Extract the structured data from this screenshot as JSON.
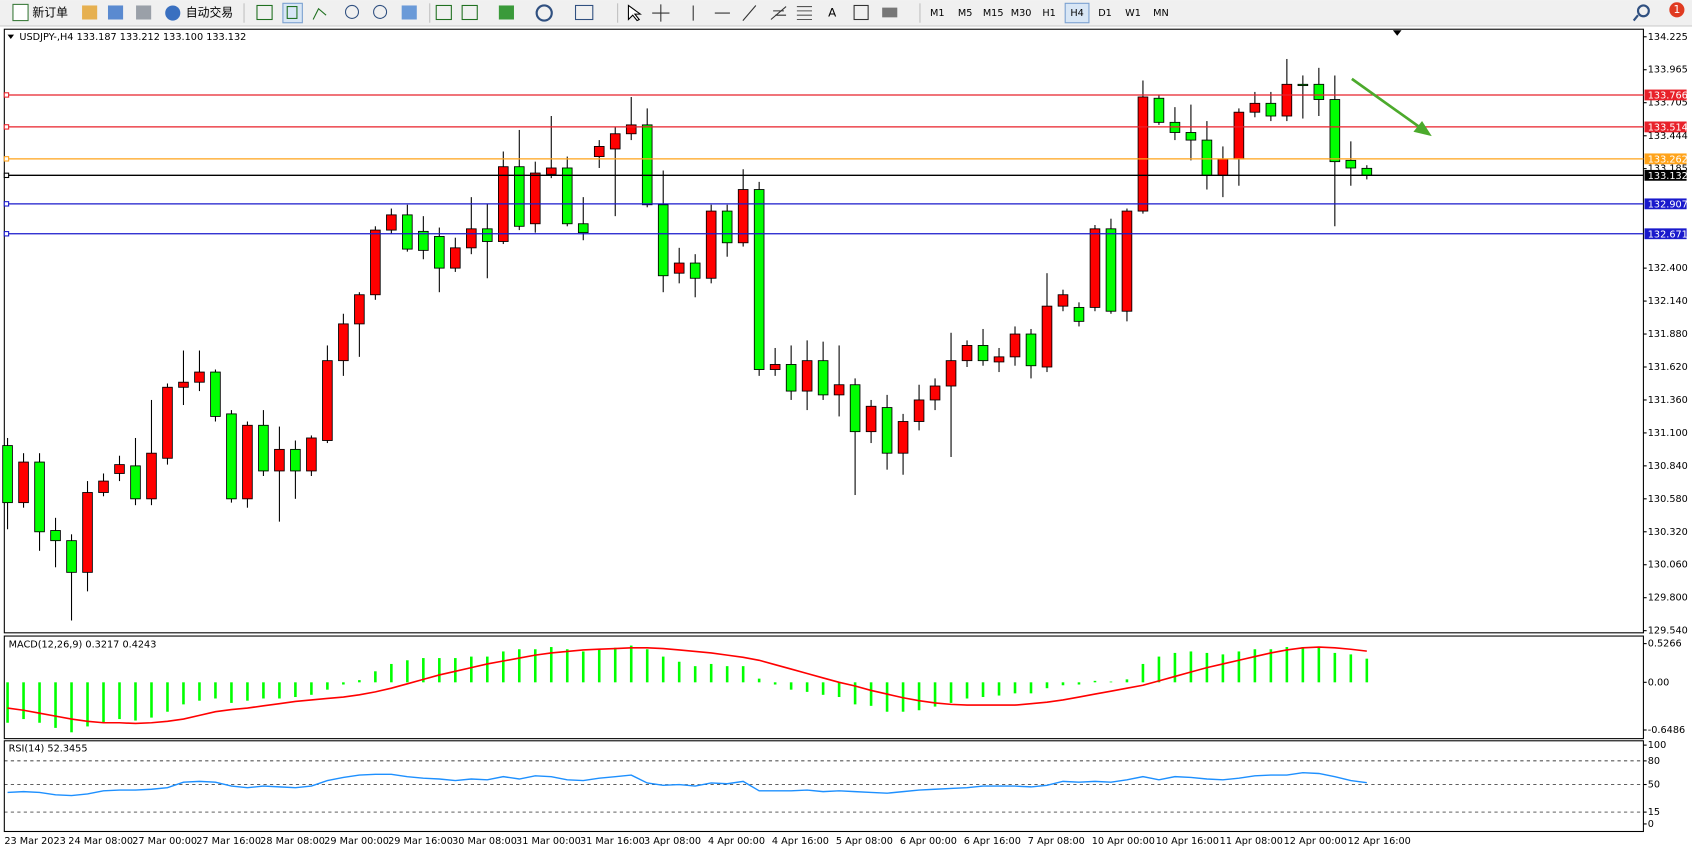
{
  "toolbar": {
    "new_order": "新订单",
    "auto_trading": "自动交易",
    "timeframes": [
      "M1",
      "M5",
      "M15",
      "M30",
      "H1",
      "H4",
      "D1",
      "W1",
      "MN"
    ],
    "active_timeframe": "H4",
    "notification_count": 1
  },
  "chart_data": [
    {
      "type": "candlestick",
      "title": "USDJPY-,H4  133.187 133.212 133.100 133.132",
      "categories": [
        "23 Mar 2023",
        null,
        null,
        null,
        "24 Mar 08:00",
        null,
        null,
        null,
        "27 Mar 00:00",
        null,
        null,
        null,
        "27 Mar 16:00",
        null,
        null,
        null,
        "28 Mar 08:00",
        null,
        null,
        null,
        "29 Mar 00:00",
        null,
        null,
        null,
        "29 Mar 16:00",
        null,
        null,
        null,
        "30 Mar 08:00",
        null,
        null,
        null,
        "31 Mar 00:00",
        null,
        null,
        null,
        "31 Mar 16:00",
        null,
        null,
        null,
        "3 Apr 08:00",
        null,
        null,
        null,
        "4 Apr 00:00",
        null,
        null,
        null,
        "4 Apr 16:00",
        null,
        null,
        null,
        "5 Apr 08:00",
        null,
        null,
        null,
        "6 Apr 00:00",
        null,
        null,
        null,
        "6 Apr 16:00",
        null,
        null,
        null,
        "7 Apr 08:00",
        null,
        null,
        null,
        "10 Apr 00:00",
        null,
        null,
        null,
        "10 Apr 16:00",
        null,
        null,
        null,
        "11 Apr 08:00",
        null,
        null,
        null,
        "12 Apr 00:00",
        null,
        null,
        null,
        "12 Apr 16:00",
        null
      ],
      "open": [
        131.0,
        130.55,
        130.87,
        130.33,
        130.25,
        130.0,
        130.63,
        130.78,
        130.84,
        130.58,
        130.9,
        131.46,
        131.5,
        131.58,
        131.25,
        130.58,
        131.16,
        130.8,
        130.97,
        130.8,
        131.04,
        131.67,
        131.96,
        132.19,
        132.7,
        132.82,
        132.69,
        132.65,
        132.4,
        132.56,
        132.71,
        132.61,
        133.2,
        132.75,
        133.14,
        133.19,
        132.75,
        133.28,
        133.34,
        133.46,
        133.53,
        132.9,
        132.36,
        132.44,
        132.32,
        132.85,
        132.6,
        133.02,
        131.6,
        131.64,
        131.43,
        131.67,
        131.4,
        131.48,
        131.11,
        131.3,
        130.94,
        131.19,
        131.36,
        131.47,
        131.67,
        131.79,
        131.66,
        131.7,
        131.88,
        131.62,
        132.1,
        132.09,
        132.09,
        132.71,
        132.06,
        132.85,
        133.74,
        133.55,
        133.47,
        133.41,
        133.13,
        133.26,
        133.63,
        133.7,
        133.6,
        133.85,
        133.85,
        133.73,
        133.25,
        133.187
      ],
      "high": [
        131.06,
        130.94,
        130.94,
        130.43,
        130.3,
        130.72,
        130.78,
        130.92,
        131.06,
        131.36,
        131.49,
        131.75,
        131.75,
        131.6,
        131.28,
        131.19,
        131.28,
        131.15,
        131.04,
        131.08,
        131.79,
        132.04,
        132.21,
        132.73,
        132.87,
        132.9,
        132.81,
        132.72,
        132.64,
        132.96,
        132.91,
        133.32,
        133.49,
        133.24,
        133.6,
        133.28,
        132.96,
        133.41,
        133.51,
        133.75,
        133.66,
        133.17,
        132.56,
        132.51,
        132.9,
        132.9,
        133.18,
        133.08,
        131.77,
        131.79,
        131.83,
        131.82,
        131.79,
        131.53,
        131.36,
        131.4,
        131.25,
        131.48,
        131.53,
        131.89,
        131.83,
        131.92,
        131.77,
        131.94,
        131.92,
        132.36,
        132.23,
        132.13,
        132.74,
        132.79,
        132.87,
        133.88,
        133.77,
        133.67,
        133.69,
        133.56,
        133.36,
        133.66,
        133.79,
        133.79,
        134.05,
        133.92,
        133.98,
        133.92,
        133.4,
        133.212
      ],
      "low": [
        130.34,
        130.51,
        130.17,
        130.04,
        129.62,
        129.85,
        130.6,
        130.72,
        130.53,
        130.53,
        130.85,
        131.32,
        131.43,
        131.19,
        130.55,
        130.51,
        130.76,
        130.4,
        130.58,
        130.76,
        131.02,
        131.55,
        131.7,
        132.15,
        132.67,
        132.53,
        132.47,
        132.21,
        132.37,
        132.51,
        132.32,
        132.59,
        132.7,
        132.68,
        133.11,
        132.73,
        132.62,
        133.19,
        132.81,
        133.41,
        132.88,
        132.21,
        132.28,
        132.17,
        132.28,
        132.49,
        132.57,
        131.55,
        131.55,
        131.36,
        131.28,
        131.36,
        131.23,
        130.61,
        131.02,
        130.81,
        130.77,
        131.12,
        131.28,
        130.91,
        131.62,
        131.63,
        131.58,
        131.63,
        131.53,
        131.58,
        132.06,
        131.94,
        132.06,
        132.04,
        131.98,
        132.83,
        133.53,
        133.41,
        133.25,
        133.02,
        132.96,
        133.05,
        133.59,
        133.56,
        133.56,
        133.58,
        133.6,
        132.73,
        133.05,
        133.1
      ],
      "close": [
        130.55,
        130.87,
        130.32,
        130.25,
        130.0,
        130.63,
        130.72,
        130.85,
        130.58,
        130.94,
        131.46,
        131.5,
        131.58,
        131.23,
        130.58,
        131.16,
        130.8,
        130.97,
        130.8,
        131.06,
        131.67,
        131.96,
        132.19,
        132.7,
        132.82,
        132.55,
        132.54,
        132.4,
        132.56,
        132.71,
        132.61,
        133.2,
        132.73,
        133.15,
        133.19,
        132.75,
        132.68,
        133.36,
        133.46,
        133.53,
        132.9,
        132.34,
        132.44,
        132.32,
        132.85,
        132.6,
        133.02,
        131.6,
        131.64,
        131.43,
        131.67,
        131.4,
        131.48,
        131.11,
        131.31,
        130.94,
        131.19,
        131.36,
        131.47,
        131.67,
        131.79,
        131.67,
        131.7,
        131.88,
        131.63,
        132.1,
        132.19,
        131.98,
        132.71,
        132.06,
        132.85,
        133.75,
        133.55,
        133.47,
        133.41,
        133.13,
        133.26,
        133.63,
        133.7,
        133.6,
        133.85,
        133.84,
        133.73,
        133.24,
        133.19,
        133.132
      ],
      "up_color": "#ff0000",
      "down_color": "#00ff00",
      "ylim": [
        129.54,
        134.225
      ],
      "yticks": [
        {
          "value": 134.225,
          "label": "134.225"
        },
        {
          "value": 133.965,
          "label": "133.965"
        },
        {
          "value": 133.705,
          "label": "133.705"
        },
        {
          "value": 133.444,
          "label": "133.444"
        },
        {
          "value": 133.185,
          "label": "133.185"
        },
        {
          "value": 132.4,
          "label": "132.400"
        },
        {
          "value": 132.14,
          "label": "132.140"
        },
        {
          "value": 131.88,
          "label": "131.880"
        },
        {
          "value": 131.62,
          "label": "131.620"
        },
        {
          "value": 131.36,
          "label": "131.360"
        },
        {
          "value": 131.1,
          "label": "131.100"
        },
        {
          "value": 130.84,
          "label": "130.840"
        },
        {
          "value": 130.58,
          "label": "130.580"
        },
        {
          "value": 130.32,
          "label": "130.320"
        },
        {
          "value": 130.06,
          "label": "130.060"
        },
        {
          "value": 129.8,
          "label": "129.800"
        },
        {
          "value": 129.54,
          "label": "129.540"
        }
      ],
      "hlines": [
        {
          "value": 133.766,
          "color": "#e8212a"
        },
        {
          "value": 133.514,
          "color": "#e8212a"
        },
        {
          "value": 133.262,
          "color": "#ffa31a"
        },
        {
          "value": 133.132,
          "color": "#000000"
        },
        {
          "value": 132.907,
          "color": "#1a1acc"
        },
        {
          "value": 132.671,
          "color": "#1a1acc"
        }
      ]
    },
    {
      "type": "macd",
      "title": "MACD(12,26,9) 0.3217 0.4243",
      "histogram": {
        "color": "#00ff00",
        "values": [
          -0.55,
          -0.5,
          -0.55,
          -0.62,
          -0.68,
          -0.6,
          -0.55,
          -0.5,
          -0.52,
          -0.48,
          -0.4,
          -0.3,
          -0.25,
          -0.22,
          -0.28,
          -0.25,
          -0.22,
          -0.22,
          -0.2,
          -0.17,
          -0.1,
          -0.03,
          0.03,
          0.15,
          0.25,
          0.3,
          0.33,
          0.33,
          0.33,
          0.35,
          0.35,
          0.42,
          0.45,
          0.45,
          0.48,
          0.45,
          0.42,
          0.45,
          0.47,
          0.5,
          0.45,
          0.35,
          0.28,
          0.22,
          0.25,
          0.22,
          0.22,
          0.05,
          -0.03,
          -0.1,
          -0.13,
          -0.17,
          -0.2,
          -0.3,
          -0.32,
          -0.4,
          -0.4,
          -0.38,
          -0.33,
          -0.28,
          -0.22,
          -0.2,
          -0.18,
          -0.15,
          -0.15,
          -0.08,
          -0.04,
          -0.03,
          0.02,
          0.01,
          0.04,
          0.25,
          0.35,
          0.4,
          0.42,
          0.4,
          0.38,
          0.42,
          0.45,
          0.45,
          0.48,
          0.48,
          0.48,
          0.4,
          0.38,
          0.3217
        ]
      },
      "signal": {
        "color": "#ff0000",
        "values": [
          -0.35,
          -0.38,
          -0.42,
          -0.46,
          -0.5,
          -0.53,
          -0.55,
          -0.55,
          -0.56,
          -0.55,
          -0.53,
          -0.5,
          -0.45,
          -0.4,
          -0.37,
          -0.35,
          -0.32,
          -0.29,
          -0.26,
          -0.24,
          -0.22,
          -0.2,
          -0.17,
          -0.13,
          -0.08,
          -0.02,
          0.04,
          0.1,
          0.15,
          0.2,
          0.25,
          0.29,
          0.33,
          0.37,
          0.4,
          0.42,
          0.44,
          0.45,
          0.46,
          0.47,
          0.47,
          0.46,
          0.44,
          0.42,
          0.4,
          0.37,
          0.34,
          0.3,
          0.24,
          0.18,
          0.12,
          0.06,
          0.0,
          -0.05,
          -0.11,
          -0.16,
          -0.21,
          -0.25,
          -0.28,
          -0.3,
          -0.31,
          -0.31,
          -0.31,
          -0.31,
          -0.29,
          -0.27,
          -0.24,
          -0.2,
          -0.16,
          -0.12,
          -0.08,
          -0.04,
          0.02,
          0.08,
          0.14,
          0.2,
          0.25,
          0.3,
          0.35,
          0.4,
          0.44,
          0.47,
          0.48,
          0.47,
          0.45,
          0.4243
        ]
      },
      "ylim": [
        -0.6486,
        0.5266
      ],
      "yticks": [
        0.5266,
        {
          "value": 0,
          "label": "0.00"
        },
        -0.6486
      ]
    },
    {
      "type": "line",
      "title": "RSI(14) 52.3455",
      "color": "#1e90ff",
      "values": [
        40,
        41,
        40,
        37,
        36,
        38,
        42,
        43,
        43,
        44,
        46,
        53,
        54,
        53,
        48,
        46,
        48,
        47,
        46,
        48,
        55,
        59,
        62,
        63,
        63,
        60,
        58,
        57,
        55,
        57,
        56,
        60,
        57,
        61,
        60,
        56,
        55,
        58,
        60,
        62,
        52,
        49,
        50,
        48,
        52,
        51,
        54,
        42,
        42,
        42,
        43,
        41,
        42,
        41,
        40,
        39,
        41,
        43,
        44,
        45,
        46,
        48,
        48,
        48,
        47,
        49,
        54,
        53,
        54,
        53,
        56,
        60,
        56,
        60,
        59,
        57,
        56,
        58,
        61,
        62,
        62,
        65,
        64,
        60,
        55,
        52.3455
      ],
      "ylim": [
        0,
        100
      ],
      "yticks": [
        100,
        80,
        50,
        15,
        0
      ],
      "grid": true
    }
  ]
}
